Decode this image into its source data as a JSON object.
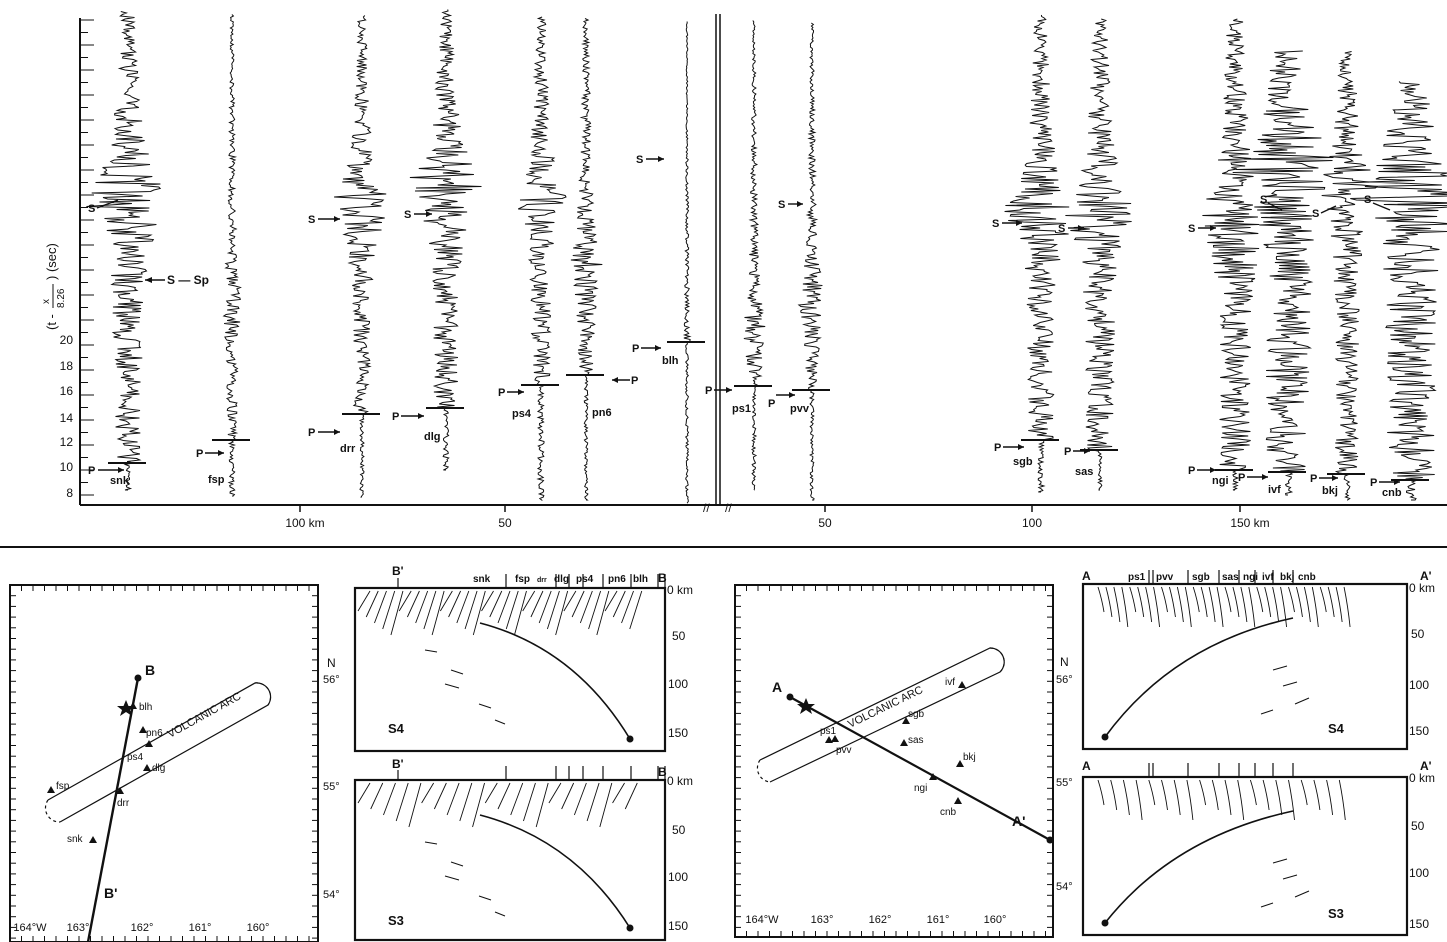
{
  "colors": {
    "ink": "#111111",
    "paper": "#ffffff"
  },
  "seismogram_panel": {
    "y_axis_label": "(t - x/8.26) (sec)",
    "y_axis_label_left": "(t -",
    "y_axis_label_num": "x",
    "y_axis_label_den": "8.26",
    "y_axis_label_right": ") (sec)",
    "y_ticks": [
      "8",
      "10",
      "12",
      "14",
      "16",
      "18",
      "20"
    ],
    "distance_labels": [
      "100 km",
      "50",
      "50",
      "100",
      "150 km"
    ],
    "s_sp_label": "S — Sp",
    "break_mark": "//",
    "traces": [
      {
        "station": "snk",
        "p_label": "P",
        "s_label": "S"
      },
      {
        "station": "fsp",
        "p_label": "P",
        "s_label": ""
      },
      {
        "station": "drr",
        "p_label": "P",
        "s_label": "S"
      },
      {
        "station": "dlg",
        "p_label": "P",
        "s_label": "S"
      },
      {
        "station": "ps4",
        "p_label": "P",
        "s_label": ""
      },
      {
        "station": "pn6",
        "p_label": "P",
        "s_label": ""
      },
      {
        "station": "blh",
        "p_label": "P",
        "s_label": "S"
      },
      {
        "station": "ps1",
        "p_label": "P",
        "s_label": ""
      },
      {
        "station": "pvv",
        "p_label": "P",
        "s_label": "S"
      },
      {
        "station": "sgb",
        "p_label": "P",
        "s_label": "S"
      },
      {
        "station": "sas",
        "p_label": "P",
        "s_label": "S"
      },
      {
        "station": "ngi",
        "p_label": "P",
        "s_label": "S"
      },
      {
        "station": "ivf",
        "p_label": "P",
        "s_label": "S"
      },
      {
        "station": "bkj",
        "p_label": "P",
        "s_label": "S"
      },
      {
        "station": "cnb",
        "p_label": "P",
        "s_label": "S"
      }
    ]
  },
  "map_left": {
    "profile_start": "B",
    "profile_end": "B'",
    "arc_label": "VOLCANIC ARC",
    "north_label": "N",
    "lat_labels": [
      "56°",
      "55°",
      "54°"
    ],
    "lon_labels": [
      "164°W",
      "163°",
      "162°",
      "161°",
      "160°"
    ],
    "stations": [
      "blh",
      "pn6",
      "ps4",
      "dlg",
      "drr",
      "fsp",
      "snk"
    ]
  },
  "map_right": {
    "profile_start": "A",
    "profile_end": "A'",
    "arc_label": "VOLCANIC ARC",
    "north_label": "N",
    "lat_labels": [
      "56°",
      "55°",
      "54°"
    ],
    "lon_labels": [
      "164°W",
      "163°",
      "162°",
      "161°",
      "160°"
    ],
    "stations": [
      "ivf",
      "sgb",
      "ps1",
      "pvv",
      "sas",
      "bkj",
      "ngi",
      "cnb"
    ]
  },
  "section_B": {
    "left_label": "B'",
    "right_label": "B",
    "station_labels": [
      "snk",
      "fsp",
      "drr",
      "dlg",
      "ps4",
      "pn6",
      "blh"
    ],
    "depth_labels": [
      "0 km",
      "50",
      "100",
      "150"
    ],
    "panel_labels": [
      "S4",
      "S3"
    ]
  },
  "section_A": {
    "left_label": "A",
    "right_label": "A'",
    "station_labels": [
      "ps1",
      "pvv",
      "sgb",
      "sas",
      "ngi",
      "ivf",
      "bkj",
      "cnb"
    ],
    "depth_labels": [
      "0 km",
      "50",
      "100",
      "150"
    ],
    "panel_labels": [
      "S4",
      "S3"
    ]
  }
}
